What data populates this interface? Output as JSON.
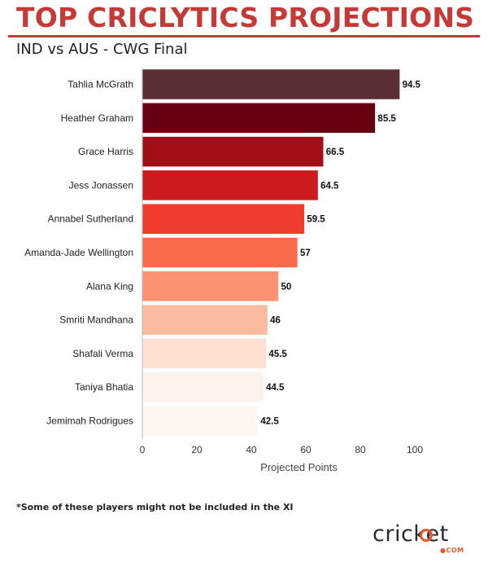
{
  "header": {
    "title": "TOP CRICLYTICS PROJECTIONS",
    "subtitle": "IND vs AUS - CWG Final"
  },
  "footnote": "*Some of these players might not be included in the XI",
  "brand": {
    "word": "cricket",
    "sub": "●COM",
    "accent": "#e8592a"
  },
  "chart_data": {
    "type": "bar",
    "orientation": "horizontal",
    "categories": [
      "Tahlia McGrath",
      "Heather Graham",
      "Grace Harris",
      "Jess Jonassen",
      "Annabel Sutherland",
      "Amanda-Jade Wellington",
      "Alana King",
      "Smriti Mandhana",
      "Shafali Verma",
      "Taniya Bhatia",
      "Jemimah Rodrigues"
    ],
    "values": [
      94.5,
      85.5,
      66.5,
      64.5,
      59.5,
      57,
      50,
      46,
      45.5,
      44.5,
      42.5
    ],
    "data_labels": [
      "94.5",
      "85.5",
      "66.5",
      "64.5",
      "59.5",
      "57",
      "50",
      "46",
      "45.5",
      "44.5",
      "42.5"
    ],
    "colors": [
      "#5a3034",
      "#670010",
      "#a30f17",
      "#cc1b20",
      "#ef3c2d",
      "#fb6a4a",
      "#fc9272",
      "#fcbba1",
      "#fee0d2",
      "#fef2ec",
      "#fff6f2"
    ],
    "xlabel": "Projected Points",
    "ylabel": "",
    "xlim": [
      0,
      100
    ],
    "xticks": [
      "0",
      "20",
      "40",
      "60",
      "80",
      "100"
    ],
    "grid": false,
    "legend": "none"
  }
}
